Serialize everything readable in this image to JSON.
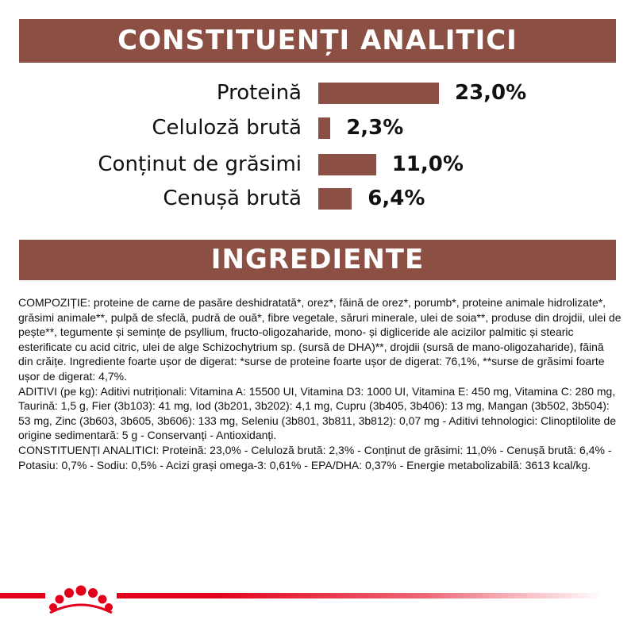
{
  "sections": {
    "analytic_title": "CONSTITUENȚI ANALITICI",
    "ingredients_title": "INGREDIENTE"
  },
  "chart_data": {
    "type": "bar",
    "categories": [
      "Proteină",
      "Celuloză brută",
      "Conținut de grăsimi",
      "Cenușă brută"
    ],
    "values": [
      23.0,
      2.3,
      11.0,
      6.4
    ],
    "value_labels": [
      "23,0%",
      "2,3%",
      "11,0%",
      "6,4%"
    ],
    "orientation": "horizontal"
  },
  "colors": {
    "brand_brown": "#8c4f43",
    "brand_red": "#e2001a"
  },
  "ingredients": {
    "composition": "COMPOZIȚIE: proteine de carne de pasăre deshidratată*, orez*, făină de orez*, porumb*, proteine animale hidrolizate*, grăsimi animale**, pulpă de sfeclă, pudră de ouă*, fibre vegetale, săruri minerale, ulei de soia**, produse din drojdii, ulei de pește**, tegumente și semințe de psyllium, fructo-oligozaharide, mono- și digliceride ale acizilor palmitic și stearic esterificate cu acid citric, ulei de alge Schizochytrium sp. (sursă de DHA)**, drojdii (sursă de mano-oligozaharide), făină din crăițe. Ingrediente foarte ușor de digerat: *surse de proteine foarte ușor de digerat: 76,1%, **surse de grăsimi foarte ușor de digerat: 4,7%.",
    "additives": "ADITIVI (pe kg): Aditivi nutriționali: Vitamina A: 15500 UI, Vitamina D3: 1000 UI, Vitamina E: 450 mg, Vitamina C: 280 mg, Taurină: 1,5 g, Fier (3b103): 41 mg, Iod (3b201, 3b202): 4,1 mg, Cupru (3b405, 3b406): 13 mg, Mangan (3b502, 3b504): 53 mg, Zinc (3b603, 3b605, 3b606): 133 mg, Seleniu (3b801, 3b811, 3b812): 0,07 mg - Aditivi tehnologici: Clinoptilolite de origine sedimentară: 5 g - Conservanți - Antioxidanți.",
    "analytic": "CONSTITUENȚI ANALITICI: Proteină: 23,0% - Celuloză brută: 2,3% - Conținut de grăsimi: 11,0% - Cenușă brută: 6,4% - Potasiu: 0,7% - Sodiu: 0,5% - Acizi grași omega-3: 0,61% - EPA/DHA: 0,37% - Energie metabolizabilă: 3613 kcal/kg."
  },
  "logo": {
    "icon": "royal-canin-crown-icon"
  }
}
